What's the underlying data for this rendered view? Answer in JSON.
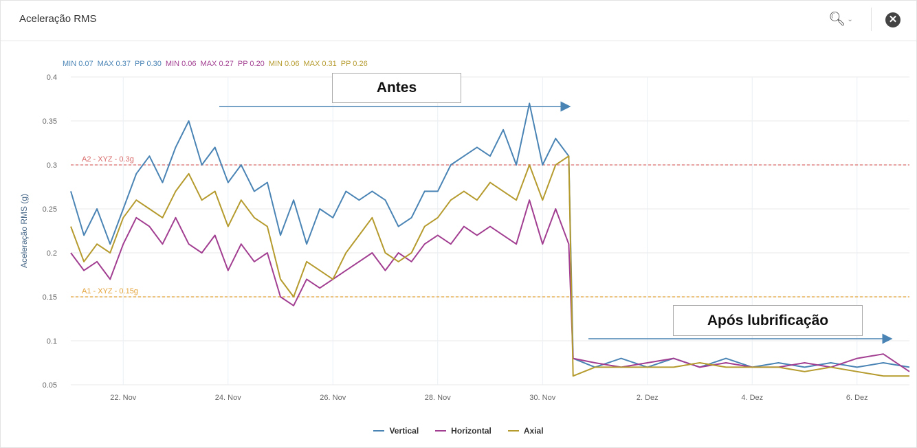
{
  "header": {
    "title": "Aceleração RMS",
    "zoom_icon": "search-icon",
    "close_icon": "close-icon"
  },
  "stats": [
    {
      "text": "MIN 0.07",
      "color": "#4a84b5"
    },
    {
      "text": "MAX 0.37",
      "color": "#4a84b5"
    },
    {
      "text": "PP 0.30",
      "color": "#4a84b5"
    },
    {
      "text": "MIN 0.06",
      "color": "#a23e91"
    },
    {
      "text": "MAX 0.27",
      "color": "#a23e91"
    },
    {
      "text": "PP 0.20",
      "color": "#a23e91"
    },
    {
      "text": "MIN 0.06",
      "color": "#b59a2d"
    },
    {
      "text": "MAX 0.31",
      "color": "#b59a2d"
    },
    {
      "text": "PP 0.26",
      "color": "#b59a2d"
    }
  ],
  "annotations": {
    "before": "Antes",
    "after": "Após lubrificação"
  },
  "chart_data": {
    "type": "line",
    "title": "",
    "ylabel": "Aceleração RMS (g)",
    "xlabel": "",
    "ylim": [
      0.05,
      0.4
    ],
    "xlim": [
      "2021-11-21",
      "2021-12-07"
    ],
    "yticks": [
      0.05,
      0.1,
      0.15,
      0.2,
      0.25,
      0.3,
      0.35,
      0.4
    ],
    "xticks": [
      {
        "date": "2021-11-22",
        "label": "22. Nov"
      },
      {
        "date": "2021-11-24",
        "label": "24. Nov"
      },
      {
        "date": "2021-11-26",
        "label": "26. Nov"
      },
      {
        "date": "2021-11-28",
        "label": "28. Nov"
      },
      {
        "date": "2021-11-30",
        "label": "30. Nov"
      },
      {
        "date": "2021-12-02",
        "label": "2. Dez"
      },
      {
        "date": "2021-12-04",
        "label": "4. Dez"
      },
      {
        "date": "2021-12-06",
        "label": "6. Dez"
      }
    ],
    "thresholds": [
      {
        "label": "A2 - XYZ - 0.3g",
        "value": 0.3,
        "color": "#d96a6a"
      },
      {
        "label": "A1 - XYZ - 0.15g",
        "value": 0.15,
        "color": "#e3a33a"
      }
    ],
    "grid": true,
    "legend_position": "bottom",
    "series": [
      {
        "name": "Vertical",
        "color": "#4a84b5",
        "points": [
          [
            "2021-11-21",
            0.27
          ],
          [
            "2021-11-21 06:00",
            0.22
          ],
          [
            "2021-11-21 12:00",
            0.25
          ],
          [
            "2021-11-21 18:00",
            0.21
          ],
          [
            "2021-11-22",
            0.25
          ],
          [
            "2021-11-22 06:00",
            0.29
          ],
          [
            "2021-11-22 12:00",
            0.31
          ],
          [
            "2021-11-22 18:00",
            0.28
          ],
          [
            "2021-11-23",
            0.32
          ],
          [
            "2021-11-23 06:00",
            0.35
          ],
          [
            "2021-11-23 12:00",
            0.3
          ],
          [
            "2021-11-23 18:00",
            0.32
          ],
          [
            "2021-11-24",
            0.28
          ],
          [
            "2021-11-24 06:00",
            0.3
          ],
          [
            "2021-11-24 12:00",
            0.27
          ],
          [
            "2021-11-24 18:00",
            0.28
          ],
          [
            "2021-11-25",
            0.22
          ],
          [
            "2021-11-25 06:00",
            0.26
          ],
          [
            "2021-11-25 12:00",
            0.21
          ],
          [
            "2021-11-25 18:00",
            0.25
          ],
          [
            "2021-11-26",
            0.24
          ],
          [
            "2021-11-26 06:00",
            0.27
          ],
          [
            "2021-11-26 12:00",
            0.26
          ],
          [
            "2021-11-26 18:00",
            0.27
          ],
          [
            "2021-11-27",
            0.26
          ],
          [
            "2021-11-27 06:00",
            0.23
          ],
          [
            "2021-11-27 12:00",
            0.24
          ],
          [
            "2021-11-27 18:00",
            0.27
          ],
          [
            "2021-11-28",
            0.27
          ],
          [
            "2021-11-28 06:00",
            0.3
          ],
          [
            "2021-11-28 12:00",
            0.31
          ],
          [
            "2021-11-28 18:00",
            0.32
          ],
          [
            "2021-11-29",
            0.31
          ],
          [
            "2021-11-29 06:00",
            0.34
          ],
          [
            "2021-11-29 12:00",
            0.3
          ],
          [
            "2021-11-29 18:00",
            0.37
          ],
          [
            "2021-11-30",
            0.3
          ],
          [
            "2021-11-30 06:00",
            0.33
          ],
          [
            "2021-11-30 12:00",
            0.31
          ],
          [
            "2021-11-30 14:00",
            0.08
          ],
          [
            "2021-12-01",
            0.07
          ],
          [
            "2021-12-01 12:00",
            0.08
          ],
          [
            "2021-12-02",
            0.07
          ],
          [
            "2021-12-02 12:00",
            0.08
          ],
          [
            "2021-12-03",
            0.07
          ],
          [
            "2021-12-03 12:00",
            0.08
          ],
          [
            "2021-12-04",
            0.07
          ],
          [
            "2021-12-04 12:00",
            0.075
          ],
          [
            "2021-12-05",
            0.07
          ],
          [
            "2021-12-05 12:00",
            0.075
          ],
          [
            "2021-12-06",
            0.07
          ],
          [
            "2021-12-06 12:00",
            0.075
          ],
          [
            "2021-12-07",
            0.07
          ]
        ]
      },
      {
        "name": "Horizontal",
        "color": "#a23e91",
        "points": [
          [
            "2021-11-21",
            0.2
          ],
          [
            "2021-11-21 06:00",
            0.18
          ],
          [
            "2021-11-21 12:00",
            0.19
          ],
          [
            "2021-11-21 18:00",
            0.17
          ],
          [
            "2021-11-22",
            0.21
          ],
          [
            "2021-11-22 06:00",
            0.24
          ],
          [
            "2021-11-22 12:00",
            0.23
          ],
          [
            "2021-11-22 18:00",
            0.21
          ],
          [
            "2021-11-23",
            0.24
          ],
          [
            "2021-11-23 06:00",
            0.21
          ],
          [
            "2021-11-23 12:00",
            0.2
          ],
          [
            "2021-11-23 18:00",
            0.22
          ],
          [
            "2021-11-24",
            0.18
          ],
          [
            "2021-11-24 06:00",
            0.21
          ],
          [
            "2021-11-24 12:00",
            0.19
          ],
          [
            "2021-11-24 18:00",
            0.2
          ],
          [
            "2021-11-25",
            0.15
          ],
          [
            "2021-11-25 06:00",
            0.14
          ],
          [
            "2021-11-25 12:00",
            0.17
          ],
          [
            "2021-11-25 18:00",
            0.16
          ],
          [
            "2021-11-26",
            0.17
          ],
          [
            "2021-11-26 06:00",
            0.18
          ],
          [
            "2021-11-26 12:00",
            0.19
          ],
          [
            "2021-11-26 18:00",
            0.2
          ],
          [
            "2021-11-27",
            0.18
          ],
          [
            "2021-11-27 06:00",
            0.2
          ],
          [
            "2021-11-27 12:00",
            0.19
          ],
          [
            "2021-11-27 18:00",
            0.21
          ],
          [
            "2021-11-28",
            0.22
          ],
          [
            "2021-11-28 06:00",
            0.21
          ],
          [
            "2021-11-28 12:00",
            0.23
          ],
          [
            "2021-11-28 18:00",
            0.22
          ],
          [
            "2021-11-29",
            0.23
          ],
          [
            "2021-11-29 06:00",
            0.22
          ],
          [
            "2021-11-29 12:00",
            0.21
          ],
          [
            "2021-11-29 18:00",
            0.26
          ],
          [
            "2021-11-30",
            0.21
          ],
          [
            "2021-11-30 06:00",
            0.25
          ],
          [
            "2021-11-30 12:00",
            0.21
          ],
          [
            "2021-11-30 14:00",
            0.08
          ],
          [
            "2021-12-01",
            0.075
          ],
          [
            "2021-12-01 12:00",
            0.07
          ],
          [
            "2021-12-02",
            0.075
          ],
          [
            "2021-12-02 12:00",
            0.08
          ],
          [
            "2021-12-03",
            0.07
          ],
          [
            "2021-12-03 12:00",
            0.075
          ],
          [
            "2021-12-04",
            0.07
          ],
          [
            "2021-12-04 12:00",
            0.07
          ],
          [
            "2021-12-05",
            0.075
          ],
          [
            "2021-12-05 12:00",
            0.07
          ],
          [
            "2021-12-06",
            0.08
          ],
          [
            "2021-12-06 12:00",
            0.085
          ],
          [
            "2021-12-07",
            0.065
          ]
        ]
      },
      {
        "name": "Axial",
        "color": "#b59a2d",
        "points": [
          [
            "2021-11-21",
            0.23
          ],
          [
            "2021-11-21 06:00",
            0.19
          ],
          [
            "2021-11-21 12:00",
            0.21
          ],
          [
            "2021-11-21 18:00",
            0.2
          ],
          [
            "2021-11-22",
            0.24
          ],
          [
            "2021-11-22 06:00",
            0.26
          ],
          [
            "2021-11-22 12:00",
            0.25
          ],
          [
            "2021-11-22 18:00",
            0.24
          ],
          [
            "2021-11-23",
            0.27
          ],
          [
            "2021-11-23 06:00",
            0.29
          ],
          [
            "2021-11-23 12:00",
            0.26
          ],
          [
            "2021-11-23 18:00",
            0.27
          ],
          [
            "2021-11-24",
            0.23
          ],
          [
            "2021-11-24 06:00",
            0.26
          ],
          [
            "2021-11-24 12:00",
            0.24
          ],
          [
            "2021-11-24 18:00",
            0.23
          ],
          [
            "2021-11-25",
            0.17
          ],
          [
            "2021-11-25 06:00",
            0.15
          ],
          [
            "2021-11-25 12:00",
            0.19
          ],
          [
            "2021-11-25 18:00",
            0.18
          ],
          [
            "2021-11-26",
            0.17
          ],
          [
            "2021-11-26 06:00",
            0.2
          ],
          [
            "2021-11-26 12:00",
            0.22
          ],
          [
            "2021-11-26 18:00",
            0.24
          ],
          [
            "2021-11-27",
            0.2
          ],
          [
            "2021-11-27 06:00",
            0.19
          ],
          [
            "2021-11-27 12:00",
            0.2
          ],
          [
            "2021-11-27 18:00",
            0.23
          ],
          [
            "2021-11-28",
            0.24
          ],
          [
            "2021-11-28 06:00",
            0.26
          ],
          [
            "2021-11-28 12:00",
            0.27
          ],
          [
            "2021-11-28 18:00",
            0.26
          ],
          [
            "2021-11-29",
            0.28
          ],
          [
            "2021-11-29 06:00",
            0.27
          ],
          [
            "2021-11-29 12:00",
            0.26
          ],
          [
            "2021-11-29 18:00",
            0.3
          ],
          [
            "2021-11-30",
            0.26
          ],
          [
            "2021-11-30 06:00",
            0.3
          ],
          [
            "2021-11-30 12:00",
            0.31
          ],
          [
            "2021-11-30 14:00",
            0.06
          ],
          [
            "2021-12-01",
            0.07
          ],
          [
            "2021-12-01 12:00",
            0.07
          ],
          [
            "2021-12-02",
            0.07
          ],
          [
            "2021-12-02 12:00",
            0.07
          ],
          [
            "2021-12-03",
            0.075
          ],
          [
            "2021-12-03 12:00",
            0.07
          ],
          [
            "2021-12-04",
            0.07
          ],
          [
            "2021-12-04 12:00",
            0.07
          ],
          [
            "2021-12-05",
            0.065
          ],
          [
            "2021-12-05 12:00",
            0.07
          ],
          [
            "2021-12-06",
            0.065
          ],
          [
            "2021-12-06 12:00",
            0.06
          ],
          [
            "2021-12-07",
            0.06
          ]
        ]
      }
    ]
  }
}
